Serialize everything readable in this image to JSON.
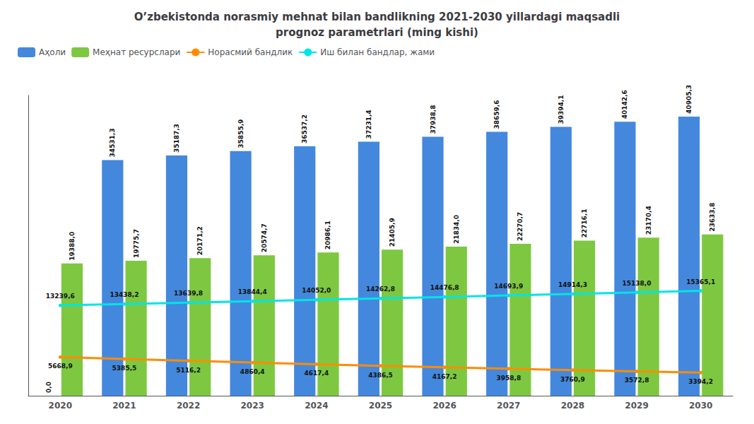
{
  "chart_data": {
    "type": "bar",
    "title": "O’zbekistonda norasmiy mehnat bilan bandlikning 2021-2030 yillardagi maqsadli\nprognoz parametrlari (ming kishi)",
    "categories": [
      "2020",
      "2021",
      "2022",
      "2023",
      "2024",
      "2025",
      "2026",
      "2027",
      "2028",
      "2029",
      "2030"
    ],
    "series": [
      {
        "name": "Аҳоли",
        "type": "bar",
        "color": "#4488DD",
        "values": [
          0,
          34531.3,
          35187.3,
          35855.9,
          36537.2,
          37231.4,
          37938.8,
          38659.6,
          39394.1,
          40142.6,
          40905.3
        ],
        "value_labels": [
          "0,0",
          "34531,3",
          "35187,3",
          "35855,9",
          "36537,2",
          "37231,4",
          "37938,8",
          "38659,6",
          "39394,1",
          "40142,6",
          "40905,3"
        ]
      },
      {
        "name": "Меҳнат ресурслари",
        "type": "bar",
        "color": "#7DC840",
        "values": [
          19388.0,
          19775.7,
          20171.2,
          20574.7,
          20986.1,
          21405.9,
          21834.0,
          22270.7,
          22716.1,
          23170.4,
          23633.8
        ],
        "value_labels": [
          "19388,0",
          "19775,7",
          "20171,2",
          "20574,7",
          "20986,1",
          "21405,9",
          "21834,0",
          "22270,7",
          "22716,1",
          "23170,4",
          "23633,8"
        ]
      },
      {
        "name": "Норасмий бандлик",
        "type": "line",
        "color": "#FF8C00",
        "values": [
          5668.9,
          5385.5,
          5116.2,
          4860.4,
          4617.4,
          4386.5,
          4167.2,
          3958.8,
          3760.9,
          3572.8,
          3394.2
        ],
        "value_labels": [
          "5668,9",
          "5385,5",
          "5116,2",
          "4860,4",
          "4617,4",
          "4386,5",
          "4167,2",
          "3958,8",
          "3760,9",
          "3572,8",
          "3394,2"
        ]
      },
      {
        "name": "Иш билан бандлар, жами",
        "type": "line",
        "color": "#00E5E5",
        "values": [
          13239.6,
          13438.2,
          13639.8,
          13844.4,
          14052.0,
          14262.8,
          14476.8,
          14693.9,
          14914.3,
          15138.0,
          15365.1
        ],
        "value_labels": [
          "13239,6",
          "13438,2",
          "13639,8",
          "13844,4",
          "14052,0",
          "14262,8",
          "14476,8",
          "14693,9",
          "14914,3",
          "15138,0",
          "15365,1"
        ]
      }
    ],
    "ylim": [
      0,
      44000
    ],
    "grid": false,
    "legend": "upper left",
    "data_labels": true,
    "tick_labels": "x"
  }
}
